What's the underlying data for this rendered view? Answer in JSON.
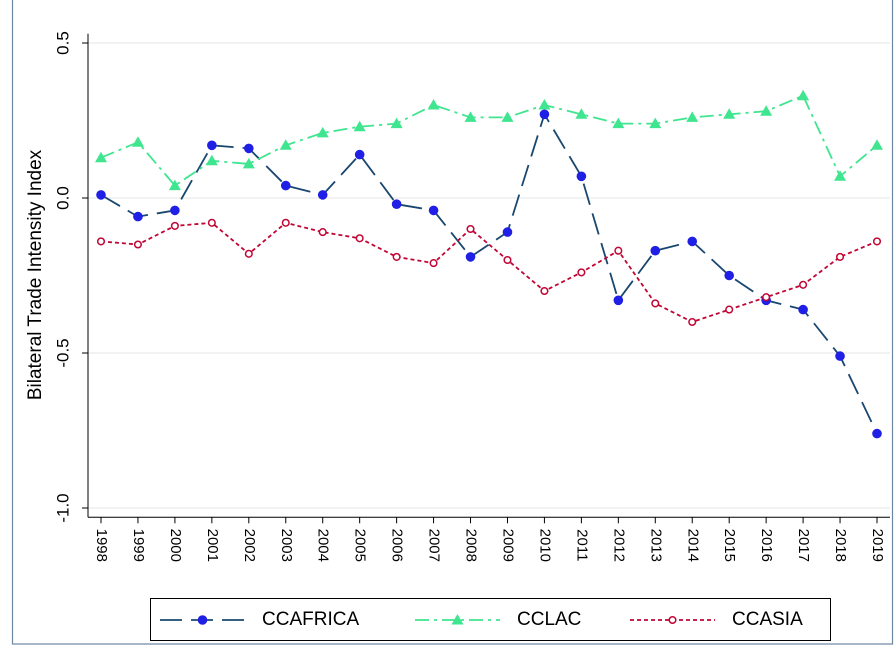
{
  "chart_data": {
    "type": "line",
    "y_label": "Bilateral Trade Intensity Index",
    "categories": [
      "1998",
      "1999",
      "2000",
      "2001",
      "2002",
      "2003",
      "2004",
      "2005",
      "2006",
      "2007",
      "2008",
      "2009",
      "2010",
      "2011",
      "2012",
      "2013",
      "2014",
      "2015",
      "2016",
      "2017",
      "2018",
      "2019"
    ],
    "series": [
      {
        "name": "CCAFRICA",
        "color": "#1a476f",
        "marker_color": "#1f1fe6",
        "marker": "circle",
        "line_style": "longdash",
        "values": [
          0.01,
          -0.06,
          -0.04,
          0.17,
          0.16,
          0.04,
          0.01,
          0.14,
          -0.02,
          -0.04,
          -0.19,
          -0.11,
          0.27,
          0.07,
          -0.33,
          -0.17,
          -0.14,
          -0.25,
          -0.33,
          -0.36,
          -0.51,
          -0.76
        ]
      },
      {
        "name": "CCLAC",
        "color": "#3fe58f",
        "marker_color": "#3fe58f",
        "marker": "triangle",
        "line_style": "dashdot",
        "values": [
          0.13,
          0.18,
          0.04,
          0.12,
          0.11,
          0.17,
          0.21,
          0.23,
          0.24,
          0.3,
          0.26,
          0.26,
          0.3,
          0.27,
          0.24,
          0.24,
          0.26,
          0.27,
          0.28,
          0.33,
          0.07,
          0.17
        ]
      },
      {
        "name": "CCASIA",
        "color": "#c10534",
        "marker_color": "#c10534",
        "marker": "hollow-circle",
        "line_style": "dot",
        "values": [
          -0.14,
          -0.15,
          -0.09,
          -0.08,
          -0.18,
          -0.08,
          -0.11,
          -0.13,
          -0.19,
          -0.21,
          -0.1,
          -0.2,
          -0.3,
          -0.24,
          -0.17,
          -0.34,
          -0.4,
          -0.36,
          -0.32,
          -0.28,
          -0.19,
          -0.14
        ]
      }
    ],
    "ylim": [
      -1.03,
      0.53
    ],
    "yticks": [
      0.5,
      {
        "value": 0,
        "label": "0.0"
      },
      -0.5,
      {
        "value": -1,
        "label": "-1.0"
      }
    ],
    "grid": true,
    "legend": "bottom"
  }
}
